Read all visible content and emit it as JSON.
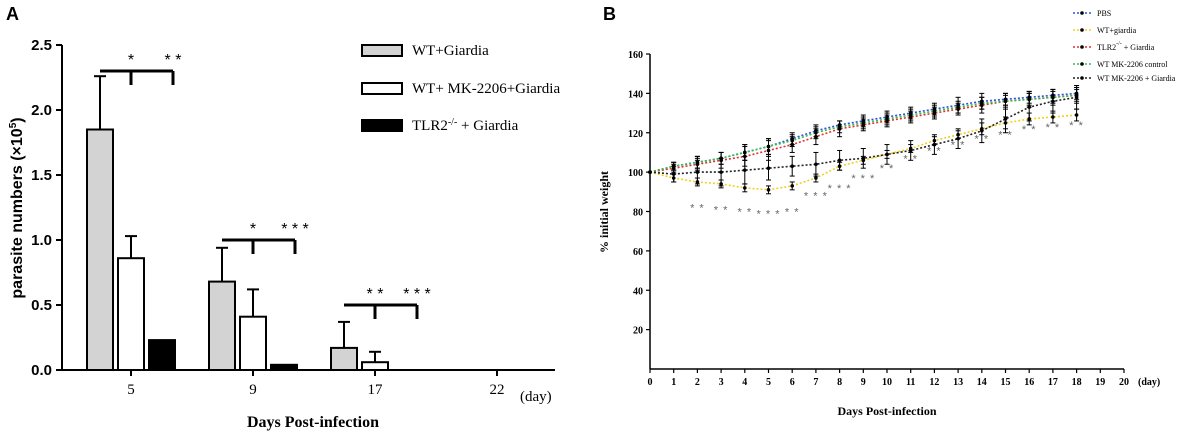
{
  "chart_data": [
    {
      "panel": "A",
      "type": "bar",
      "ylabel": "parasite numbers (×10",
      "ylabel_sup": "5",
      "ylabel_close": ")",
      "xlabel": "Days Post-infection",
      "x_unit": "(day)",
      "ylim": [
        0,
        2.5
      ],
      "yticks": [
        "0.0",
        "0.5",
        "1.0",
        "1.5",
        "2.0",
        "2.5"
      ],
      "categories": [
        "5",
        "9",
        "17",
        "22"
      ],
      "series": [
        {
          "name": "WT+Giardia",
          "fill": "#d3d3d3",
          "values": [
            1.85,
            0.68,
            0.17,
            null
          ],
          "errors": [
            0.41,
            0.26,
            0.2,
            null
          ]
        },
        {
          "name": "WT+ MK-2206+Giardia",
          "fill": "#ffffff",
          "values": [
            0.86,
            0.41,
            0.06,
            null
          ],
          "errors": [
            0.17,
            0.21,
            0.08,
            null
          ]
        },
        {
          "name": "TLR2 + Giardia",
          "fill": "#000000",
          "values": [
            0.23,
            0.04,
            0.0,
            null
          ],
          "errors": [
            0,
            0,
            0,
            null
          ]
        }
      ],
      "legend": [
        {
          "pre": "WT+Giardia",
          "sup": "",
          "post": ""
        },
        {
          "pre": "WT+ MK-2206+Giardia",
          "sup": "",
          "post": ""
        },
        {
          "pre": "TLR2",
          "sup": "-/-",
          "post": " + Giardia"
        }
      ],
      "significance": [
        {
          "category": "5",
          "left": "*",
          "right": "* *",
          "bracket_y": 2.3
        },
        {
          "category": "9",
          "left": "*",
          "right": "* * *",
          "bracket_y": 1.0
        },
        {
          "category": "17",
          "left": "* *",
          "right": "* * *",
          "bracket_y": 0.5
        }
      ]
    },
    {
      "panel": "B",
      "type": "line",
      "xlabel": "Days Post-infection",
      "x_unit": "(day)",
      "ylabel": "% initial weight",
      "xlim": [
        0,
        20
      ],
      "ylim": [
        0,
        160
      ],
      "xticks": [
        "0",
        "1",
        "2",
        "3",
        "4",
        "5",
        "6",
        "7",
        "8",
        "9",
        "10",
        "11",
        "12",
        "13",
        "14",
        "15",
        "16",
        "17",
        "18",
        "19",
        "20"
      ],
      "yticks": [
        "20",
        "40",
        "60",
        "80",
        "100",
        "120",
        "140",
        "160"
      ],
      "x": [
        0,
        1,
        2,
        3,
        4,
        5,
        6,
        7,
        8,
        9,
        10,
        11,
        12,
        13,
        14,
        15,
        16,
        17,
        18
      ],
      "series": [
        {
          "name": "PBS",
          "color": "#3050e0",
          "values": [
            100,
            103,
            105,
            107,
            110,
            113,
            117,
            121,
            124,
            126,
            128,
            130,
            132,
            134,
            136,
            137,
            138,
            139,
            140
          ],
          "errors": [
            0,
            2,
            3,
            3,
            4,
            4,
            3,
            3,
            2,
            3,
            3,
            3,
            3,
            4,
            4,
            3,
            3,
            3,
            3
          ]
        },
        {
          "name": "WT+giardia",
          "color": "#f2d020",
          "values": [
            100,
            97,
            95,
            94,
            92,
            91,
            93,
            97,
            103,
            106,
            109,
            112,
            116,
            119,
            122,
            125,
            127,
            128,
            129
          ],
          "errors": [
            0,
            2,
            2,
            2,
            2,
            2,
            2,
            2,
            2,
            2,
            2,
            2,
            2,
            2,
            3,
            3,
            3,
            3,
            3
          ]
        },
        {
          "name": "TLR2 + Giardia",
          "color": "#e03030",
          "values": [
            100,
            102,
            104,
            106,
            108,
            111,
            114,
            118,
            122,
            124,
            126,
            128,
            130,
            132,
            134,
            136,
            137,
            138,
            139
          ],
          "errors": [
            0,
            2,
            3,
            4,
            5,
            5,
            4,
            4,
            4,
            3,
            3,
            3,
            3,
            3,
            4,
            4,
            4,
            4,
            4
          ]
        },
        {
          "name": "WT MK-2206 control",
          "color": "#30c040",
          "values": [
            100,
            103,
            105,
            107,
            110,
            113,
            116,
            120,
            123,
            125,
            127,
            129,
            131,
            133,
            135,
            136,
            137,
            138,
            139
          ],
          "errors": [
            0,
            2,
            3,
            3,
            4,
            4,
            3,
            3,
            3,
            3,
            3,
            3,
            3,
            3,
            3,
            3,
            3,
            3,
            3
          ]
        },
        {
          "name": "WT MK-2206 + Giardia",
          "color": "#222222",
          "values": [
            100,
            99,
            100,
            100,
            101,
            102,
            103,
            104,
            106,
            107,
            109,
            111,
            114,
            117,
            121,
            127,
            133,
            136,
            138
          ],
          "errors": [
            0,
            4,
            6,
            7,
            7,
            6,
            5,
            6,
            5,
            5,
            5,
            5,
            5,
            5,
            6,
            7,
            7,
            6,
            6
          ]
        }
      ],
      "legend": [
        {
          "pre": "PBS",
          "sup": "",
          "post": ""
        },
        {
          "pre": "WT+giardia",
          "sup": "",
          "post": ""
        },
        {
          "pre": "TLR2",
          "sup": "-/-",
          "post": " + Giardia"
        },
        {
          "pre": "WT MK-2206 control",
          "sup": "",
          "post": ""
        },
        {
          "pre": "WT MK-2206 + Giardia",
          "sup": "",
          "post": ""
        }
      ],
      "significance": [
        {
          "x": 2,
          "label": "* *"
        },
        {
          "x": 3,
          "label": "* *"
        },
        {
          "x": 4,
          "label": "* *"
        },
        {
          "x": 5,
          "label": "* * *"
        },
        {
          "x": 6,
          "label": "* *"
        },
        {
          "x": 7,
          "label": "* * *"
        },
        {
          "x": 8,
          "label": "* * *"
        },
        {
          "x": 9,
          "label": "* * *"
        },
        {
          "x": 10,
          "label": "* *"
        },
        {
          "x": 11,
          "label": "* *"
        },
        {
          "x": 12,
          "label": "* *"
        },
        {
          "x": 13,
          "label": "* *"
        },
        {
          "x": 14,
          "label": "* *"
        },
        {
          "x": 15,
          "label": "* *"
        },
        {
          "x": 16,
          "label": "* *"
        },
        {
          "x": 17,
          "label": "* *"
        },
        {
          "x": 18,
          "label": "* *"
        }
      ],
      "significance_y": [
        80,
        79,
        78,
        77,
        78,
        86,
        90,
        95,
        100,
        105,
        109,
        112,
        115,
        117,
        120,
        121,
        122
      ]
    }
  ]
}
